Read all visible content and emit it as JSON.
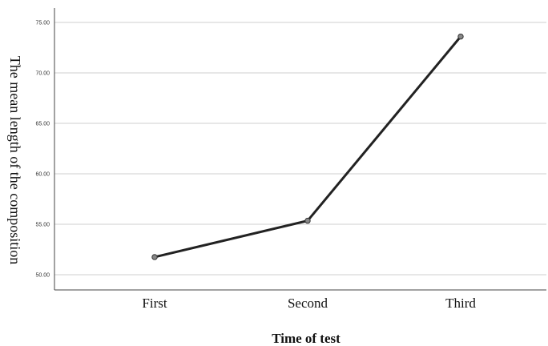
{
  "chart_data": {
    "type": "line",
    "title": "",
    "xlabel": "Time of test",
    "ylabel": "The mean length of the composition",
    "categories": [
      "First",
      "Second",
      "Third"
    ],
    "series": [
      {
        "values": [
          51.75,
          55.35,
          73.6
        ],
        "color": "#222222"
      }
    ],
    "ylim": [
      50,
      75
    ],
    "yticks": [
      "50.00",
      "55.00",
      "60.00",
      "65.00",
      "70.00",
      "75.00"
    ],
    "grid": true,
    "legend": "none"
  }
}
